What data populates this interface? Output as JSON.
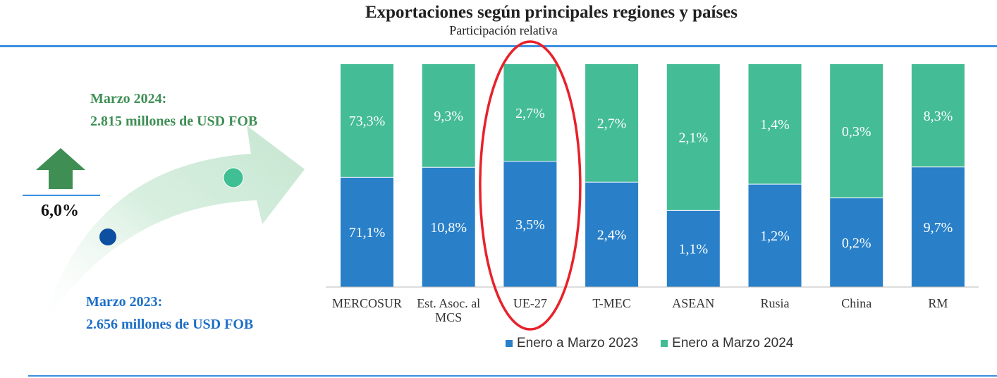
{
  "header": {
    "title": "Exportaciones según principales regiones y países",
    "subtitle": "Participación relativa"
  },
  "summary": {
    "label_2024_line1": "Marzo 2024:",
    "label_2024_line2": "2.815 millones de USD FOB",
    "label_2023_line1": "Marzo 2023:",
    "label_2023_line2": "2.656 millones de USD FOB",
    "change": "6,0%"
  },
  "colors": {
    "series_2023": "#2980c9",
    "series_2024": "#44bc96",
    "highlight": "#e8212a",
    "up_arrow": "#3f8f55"
  },
  "chart_data": {
    "type": "bar",
    "stacked": true,
    "normalized_percent": true,
    "categories": [
      "MERCOSUR",
      "Est. Asoc. al MCS",
      "UE-27",
      "T-MEC",
      "ASEAN",
      "Rusia",
      "China",
      "RM"
    ],
    "category_lines": [
      [
        "MERCOSUR"
      ],
      [
        "Est. Asoc. al",
        "MCS"
      ],
      [
        "UE-27"
      ],
      [
        "T-MEC"
      ],
      [
        "ASEAN"
      ],
      [
        "Rusia"
      ],
      [
        "China"
      ],
      [
        "RM"
      ]
    ],
    "series": [
      {
        "name": "Enero a Marzo 2023",
        "values": [
          71.1,
          10.8,
          3.5,
          2.4,
          1.1,
          1.2,
          0.2,
          9.7
        ],
        "labels": [
          "71,1%",
          "10,8%",
          "3,5%",
          "2,4%",
          "1,1%",
          "1,2%",
          "0,2%",
          "9,7%"
        ]
      },
      {
        "name": "Enero a Marzo 2024",
        "values": [
          73.3,
          9.3,
          2.7,
          2.7,
          2.1,
          1.4,
          0.3,
          8.3
        ],
        "labels": [
          "73,3%",
          "9,3%",
          "2,7%",
          "2,7%",
          "2,1%",
          "1,4%",
          "0,3%",
          "8,3%"
        ]
      }
    ],
    "highlighted_category": "UE-27",
    "legend_position": "bottom",
    "grid": false
  }
}
